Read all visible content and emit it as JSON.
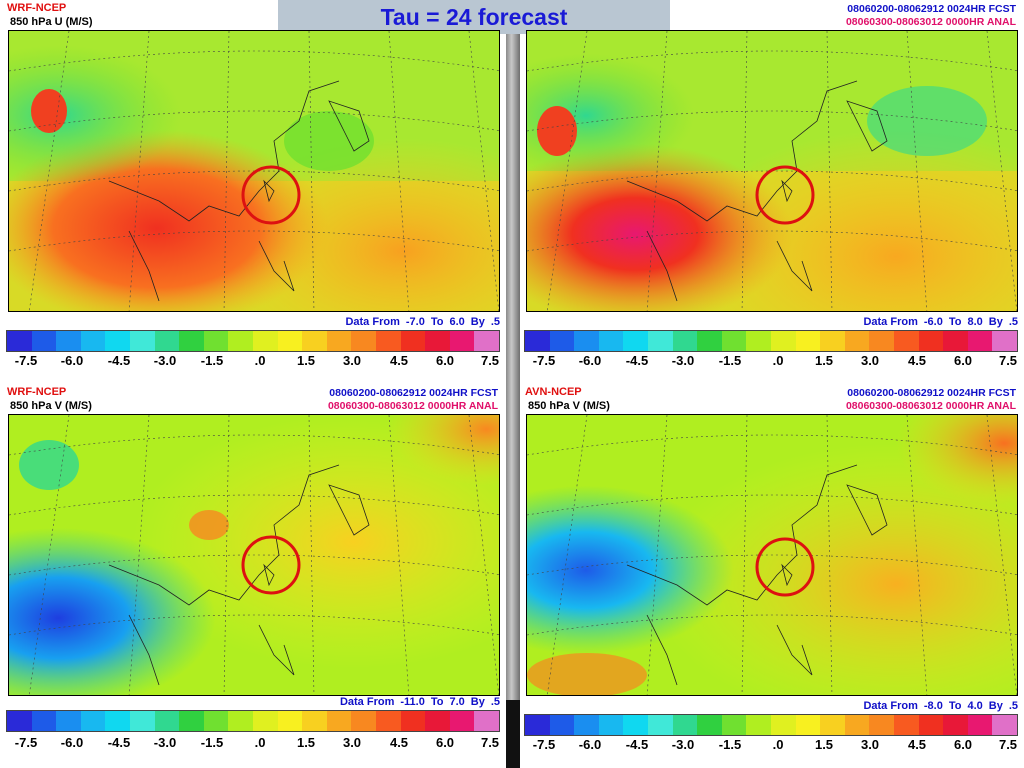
{
  "banner": {
    "title": "Tau = 24 forecast"
  },
  "colorbar": {
    "colors": [
      "#2a2ad8",
      "#1e5be8",
      "#1a8ef0",
      "#18b8f0",
      "#10d8f0",
      "#40e8d8",
      "#30d890",
      "#30d040",
      "#70e030",
      "#b0ee20",
      "#e0f020",
      "#f8f020",
      "#f8d020",
      "#f8a820",
      "#f88820",
      "#f85a20",
      "#f03020",
      "#e81838",
      "#e81870",
      "#e070c8"
    ],
    "tick_labels": [
      "-7.5",
      "-6.0",
      "-4.5",
      "-3.0",
      "-1.5",
      ".0",
      "1.5",
      "3.0",
      "4.5",
      "6.0",
      "7.5"
    ]
  },
  "panels": {
    "tl": {
      "model": "WRF-NCEP",
      "variable": "850 hPa U (M/S)",
      "fcst": "",
      "anal": "",
      "data_from_label": "Data From",
      "min": "-7.0",
      "to_label": "To",
      "max": "6.0",
      "by_label": "By",
      "step": ".5"
    },
    "tr": {
      "model": "",
      "variable": "",
      "fcst": "08060200-08062912 0024HR FCST",
      "anal": "08060300-08063012 0000HR ANAL",
      "data_from_label": "Data From",
      "min": "-6.0",
      "to_label": "To",
      "max": "8.0",
      "by_label": "By",
      "step": ".5"
    },
    "bl": {
      "model": "WRF-NCEP",
      "variable": "850 hPa V (M/S)",
      "fcst": "08060200-08062912 0024HR FCST",
      "anal": "08060300-08063012 0000HR ANAL",
      "data_from_label": "Data From",
      "min": "-11.0",
      "to_label": "To",
      "max": "7.0",
      "by_label": "By",
      "step": ".5"
    },
    "br": {
      "model": "AVN-NCEP",
      "variable": "850 hPa V (M/S)",
      "fcst": "08060200-08062912 0024HR FCST",
      "anal": "08060300-08063012 0000HR ANAL",
      "data_from_label": "Data From",
      "min": "-8.0",
      "to_label": "To",
      "max": "4.0",
      "by_label": "By",
      "step": ".5"
    }
  },
  "annotation": {
    "circle_color": "#dd1111",
    "feature": "circle-around-taiwan"
  }
}
